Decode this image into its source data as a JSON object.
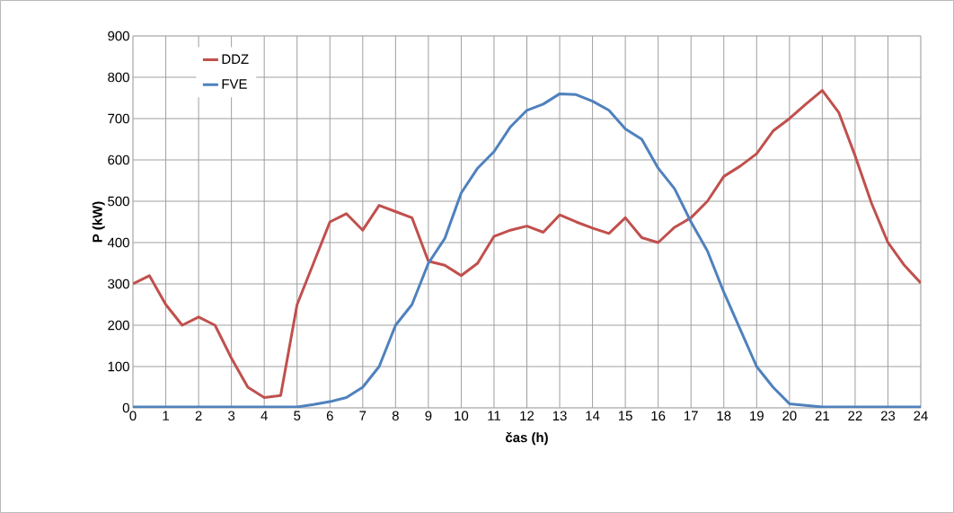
{
  "chart_data": {
    "type": "line",
    "xlabel": "čas (h)",
    "ylabel": "P (kW)",
    "x": [
      0,
      0.5,
      1,
      1.5,
      2,
      2.5,
      3,
      3.5,
      4,
      4.5,
      5,
      5.5,
      6,
      6.5,
      7,
      7.5,
      8,
      8.5,
      9,
      9.5,
      10,
      10.5,
      11,
      11.5,
      12,
      12.5,
      13,
      13.5,
      14,
      14.5,
      15,
      15.5,
      16,
      16.5,
      17,
      17.5,
      18,
      18.5,
      19,
      19.5,
      20,
      20.5,
      21,
      21.5,
      22,
      22.5,
      23,
      23.5,
      24
    ],
    "series": [
      {
        "name": "DDZ",
        "color": "#c0504d",
        "values": [
          300,
          320,
          250,
          200,
          220,
          200,
          120,
          50,
          25,
          30,
          250,
          350,
          450,
          470,
          430,
          490,
          475,
          460,
          355,
          345,
          320,
          350,
          415,
          430,
          440,
          425,
          467,
          450,
          435,
          422,
          460,
          412,
          400,
          437,
          460,
          500,
          560,
          585,
          615,
          670,
          700,
          735,
          768,
          715,
          610,
          495,
          400,
          345,
          302
        ]
      },
      {
        "name": "FVE",
        "color": "#4f81bd",
        "values": [
          2,
          2,
          2,
          2,
          2,
          2,
          2,
          2,
          2,
          2,
          2,
          8,
          15,
          25,
          50,
          100,
          200,
          250,
          350,
          410,
          520,
          580,
          620,
          680,
          720,
          735,
          760,
          758,
          742,
          720,
          675,
          650,
          580,
          530,
          450,
          380,
          280,
          190,
          100,
          50,
          10,
          6,
          2,
          2,
          2,
          2,
          2,
          2,
          2
        ]
      }
    ],
    "xlim": [
      0,
      24
    ],
    "xticks": [
      0,
      1,
      2,
      3,
      4,
      5,
      6,
      7,
      8,
      9,
      10,
      11,
      12,
      13,
      14,
      15,
      16,
      17,
      18,
      19,
      20,
      21,
      22,
      23,
      24
    ],
    "ylim": [
      0,
      900
    ],
    "yticks": [
      0,
      100,
      200,
      300,
      400,
      500,
      600,
      700,
      800,
      900
    ],
    "grid": true,
    "legend": "top left",
    "marker": "none",
    "line_style": "solid"
  }
}
